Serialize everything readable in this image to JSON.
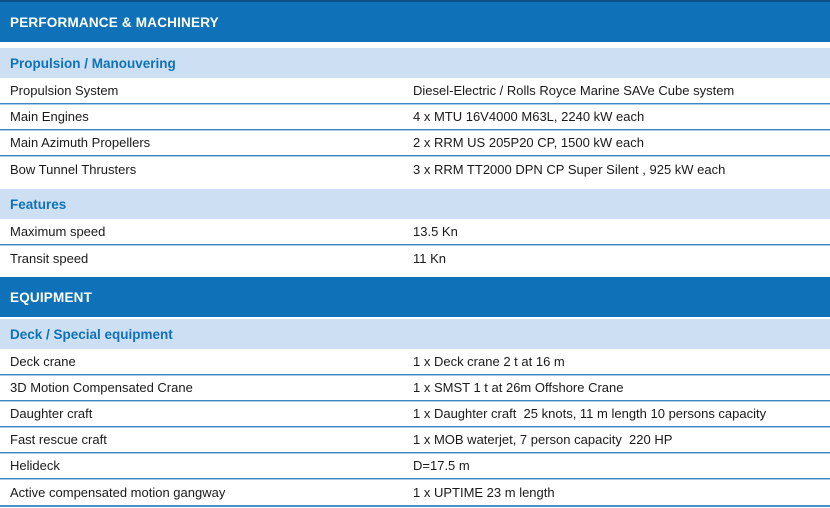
{
  "colors": {
    "page_bg": "#ffffff",
    "header_bg": "#0f72b8",
    "header_top_border": "#0b5086",
    "header_text": "#ffffff",
    "band_bg": "#cddff2",
    "band_text": "#0f72b8",
    "separator_dark": "#3f86c0",
    "separator_light": "#a9cbe8",
    "row_text": "#1a1a1a",
    "bottom_line": "#4a90c8"
  },
  "sections": [
    {
      "title": "PERFORMANCE & MACHINERY",
      "groups": [
        {
          "title": "Propulsion / Manouvering",
          "rows": [
            {
              "label": "Propulsion System",
              "value": "Diesel-Electric / Rolls Royce Marine SAVe Cube system"
            },
            {
              "label": "Main Engines",
              "value": "4 x MTU 16V4000 M63L, 2240 kW each"
            },
            {
              "label": "Main Azimuth Propellers",
              "value": "2 x RRM US 205P20 CP, 1500 kW each"
            },
            {
              "label": "Bow Tunnel Thrusters",
              "value": "3 x RRM TT2000 DPN CP Super Silent , 925 kW each"
            }
          ]
        },
        {
          "title": "Features",
          "rows": [
            {
              "label": "Maximum speed",
              "value": "13.5 Kn"
            },
            {
              "label": "Transit speed",
              "value": "11 Kn"
            }
          ]
        }
      ]
    },
    {
      "title": "EQUIPMENT",
      "groups": [
        {
          "title": "Deck / Special equipment",
          "rows": [
            {
              "label": "Deck crane",
              "value": "1 x Deck crane 2 t at 16 m"
            },
            {
              "label": "3D Motion Compensated Crane",
              "value": "1 x SMST 1 t at 26m Offshore Crane"
            },
            {
              "label": "Daughter craft",
              "value": "1 x Daughter craft  25 knots, 11 m length 10 persons capacity"
            },
            {
              "label": "Fast rescue craft",
              "value": "1 x MOB waterjet, 7 person capacity  220 HP"
            },
            {
              "label": "Helideck",
              "value": "D=17.5 m"
            },
            {
              "label": "Active compensated motion gangway",
              "value": "1 x UPTIME 23 m length"
            }
          ]
        }
      ]
    }
  ]
}
